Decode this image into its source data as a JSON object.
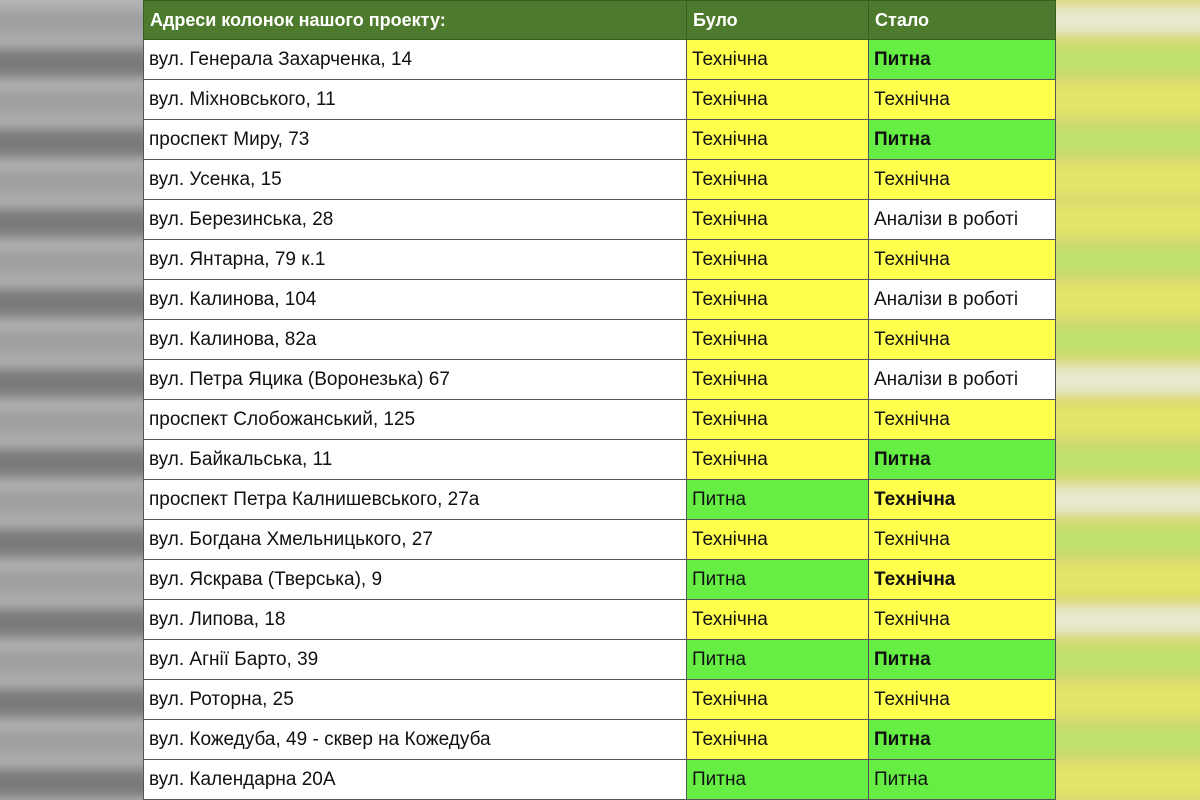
{
  "table": {
    "header": [
      "Адреси колонок нашого проекту:",
      "Було",
      "Стало"
    ],
    "rows": [
      [
        "вул. Генерала Захарченка, 14",
        "Технічна",
        "Питна"
      ],
      [
        "вул. Міхновського, 11",
        "Технічна",
        "Технічна"
      ],
      [
        "проспект Миру, 73",
        "Технічна",
        "Питна"
      ],
      [
        "вул. Усенка, 15",
        "Технічна",
        "Технічна"
      ],
      [
        "вул. Березинська, 28",
        "Технічна",
        "Аналізи в роботі"
      ],
      [
        "вул. Янтарна, 79 к.1",
        "Технічна",
        "Технічна"
      ],
      [
        "вул. Калинова, 104",
        "Технічна",
        "Аналізи в роботі"
      ],
      [
        "вул. Калинова, 82а",
        "Технічна",
        "Технічна"
      ],
      [
        "вул. Петра Яцика (Воронезька) 67",
        "Технічна",
        "Аналізи в роботі"
      ],
      [
        "проспект Слобожанський, 125",
        "Технічна",
        "Технічна"
      ],
      [
        "вул. Байкальська, 11",
        "Технічна",
        "Питна"
      ],
      [
        "проспект Петра Калнишевського, 27а",
        "Питна",
        "Технічна"
      ],
      [
        "вул. Богдана Хмельницького, 27",
        "Технічна",
        "Технічна"
      ],
      [
        "вул. Яскрава (Тверська), 9",
        "Питна",
        "Технічна"
      ],
      [
        "вул. Липова, 18",
        "Технічна",
        "Технічна"
      ],
      [
        "вул. Агнії Барто, 39",
        "Питна",
        "Питна"
      ],
      [
        "вул. Роторна, 25",
        "Технічна",
        "Технічна"
      ],
      [
        "вул. Кожедуба, 49 - сквер на Кожедуба",
        "Технічна",
        "Питна"
      ],
      [
        "вул. Календарна 20А",
        "Питна",
        "Питна"
      ]
    ]
  }
}
